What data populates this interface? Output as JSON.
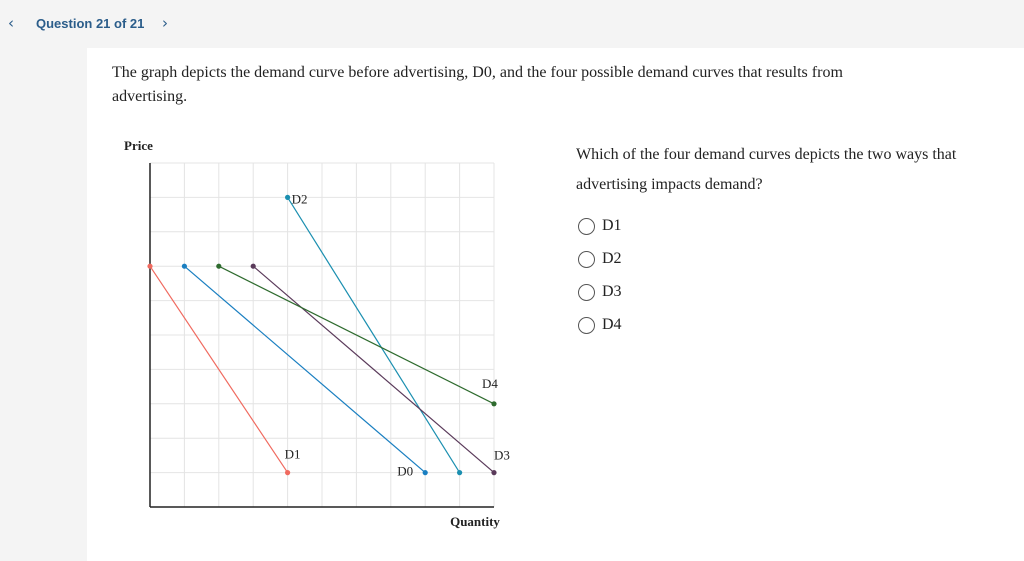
{
  "header": {
    "question": "Question 21 of 21"
  },
  "prompt": "The graph depicts the demand curve before advertising, D0, and the four possible demand curves that results from advertising.",
  "chart_data": {
    "type": "line",
    "xlabel": "Quantity",
    "ylabel": "Price",
    "xlim": [
      0,
      10
    ],
    "ylim": [
      0,
      10
    ],
    "grid": true,
    "series": [
      {
        "name": "D0",
        "color": "#1a7fc1",
        "x": [
          1,
          8
        ],
        "values": [
          7,
          1
        ]
      },
      {
        "name": "D1",
        "color": "#f06a5f",
        "x": [
          0,
          4
        ],
        "values": [
          7,
          1
        ]
      },
      {
        "name": "D2",
        "color": "#1b8fb0",
        "x": [
          4,
          9
        ],
        "values": [
          9,
          1
        ]
      },
      {
        "name": "D3",
        "color": "#5a3a5a",
        "x": [
          3,
          10
        ],
        "values": [
          7,
          1
        ]
      },
      {
        "name": "D4",
        "color": "#2e6b2e",
        "x": [
          2,
          10
        ],
        "values": [
          7,
          3
        ]
      }
    ]
  },
  "question": {
    "text": "Which of the four demand curves depicts the two ways that advertising impacts demand?",
    "options": [
      "D1",
      "D2",
      "D3",
      "D4"
    ]
  }
}
